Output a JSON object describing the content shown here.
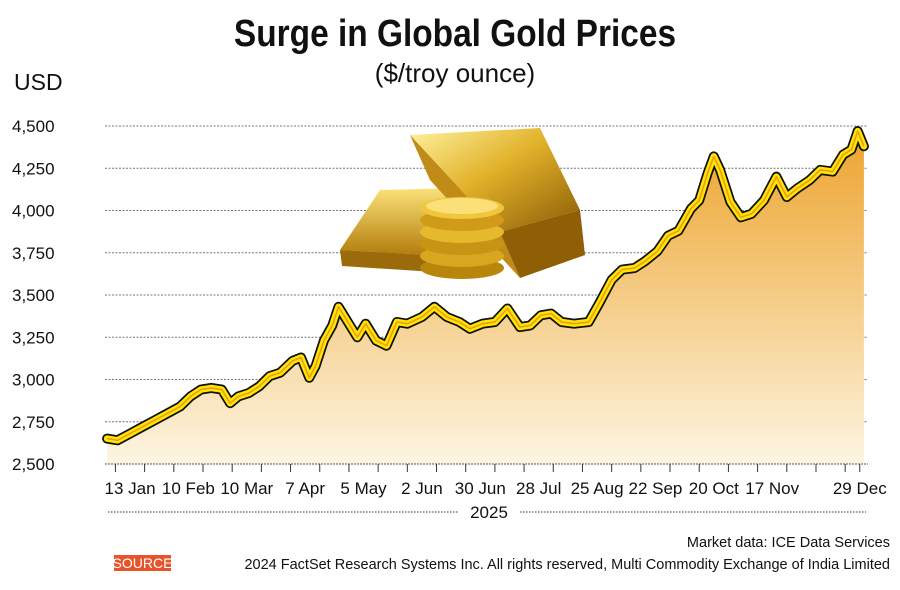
{
  "chart_data": {
    "type": "area",
    "title": "Surge in Global Gold Prices",
    "subtitle": "($/troy ounce)",
    "ylabel": "USD",
    "xlabel": "2025",
    "ylim": [
      2500,
      4500
    ],
    "yticks": [
      2500,
      2750,
      3000,
      3250,
      3500,
      3750,
      4000,
      4250,
      4500
    ],
    "ytick_labels": [
      "2,500",
      "2,750",
      "3,000",
      "3,250",
      "3,500",
      "3,750",
      "4,000",
      "4,250",
      "4,500"
    ],
    "xticks": [
      {
        "label": "13 Jan",
        "day": 12
      },
      {
        "label": "10 Feb",
        "day": 40
      },
      {
        "label": "10 Mar",
        "day": 68
      },
      {
        "label": "7 Apr",
        "day": 96
      },
      {
        "label": "5 May",
        "day": 124
      },
      {
        "label": "2 Jun",
        "day": 152
      },
      {
        "label": "30 Jun",
        "day": 180
      },
      {
        "label": "28 Jul",
        "day": 208
      },
      {
        "label": "25 Aug",
        "day": 236
      },
      {
        "label": "22 Sep",
        "day": 264
      },
      {
        "label": "20 Oct",
        "day": 292
      },
      {
        "label": "17 Nov",
        "day": 320
      },
      {
        "label": "29 Dec",
        "day": 362
      }
    ],
    "grid": true,
    "series": [
      {
        "name": "Gold price",
        "day": [
          1,
          6,
          12,
          18,
          24,
          30,
          36,
          41,
          46,
          51,
          56,
          60,
          64,
          69,
          74,
          79,
          84,
          90,
          94,
          98,
          101,
          105,
          109,
          112,
          117,
          121,
          125,
          130,
          135,
          140,
          145,
          152,
          158,
          164,
          170,
          175,
          181,
          187,
          193,
          199,
          204,
          209,
          214,
          219,
          225,
          232,
          237,
          243,
          248,
          254,
          259,
          265,
          270,
          275,
          281,
          285,
          289,
          292,
          295,
          300,
          305,
          310,
          316,
          322,
          327,
          332,
          338,
          343,
          349,
          354,
          358,
          361,
          364
        ],
        "value": [
          2650,
          2640,
          2680,
          2720,
          2760,
          2800,
          2840,
          2900,
          2940,
          2950,
          2940,
          2860,
          2900,
          2920,
          2960,
          3020,
          3040,
          3110,
          3130,
          3010,
          3080,
          3230,
          3320,
          3430,
          3330,
          3250,
          3330,
          3230,
          3200,
          3340,
          3330,
          3370,
          3430,
          3370,
          3340,
          3300,
          3330,
          3340,
          3420,
          3310,
          3320,
          3380,
          3390,
          3340,
          3330,
          3340,
          3450,
          3590,
          3650,
          3660,
          3700,
          3760,
          3850,
          3880,
          4010,
          4060,
          4220,
          4320,
          4240,
          4050,
          3960,
          3980,
          4060,
          4200,
          4080,
          4130,
          4180,
          4240,
          4230,
          4330,
          4360,
          4470,
          4380
        ]
      }
    ],
    "annotations": [
      "Market data: ICE Data Services"
    ]
  },
  "footer": {
    "market_data": "Market data: ICE Data Services",
    "source_badge": "SOURCE",
    "source_text": "2024 FactSet Research Systems Inc. All rights reserved, Multi Commodity Exchange of India Limited"
  },
  "colors": {
    "line": "#ffe600",
    "line_core": "#f09a1a",
    "outline": "#111111",
    "area_top": "#f0a832",
    "area_bottom": "#fdf4df",
    "source": "#e8542a"
  }
}
